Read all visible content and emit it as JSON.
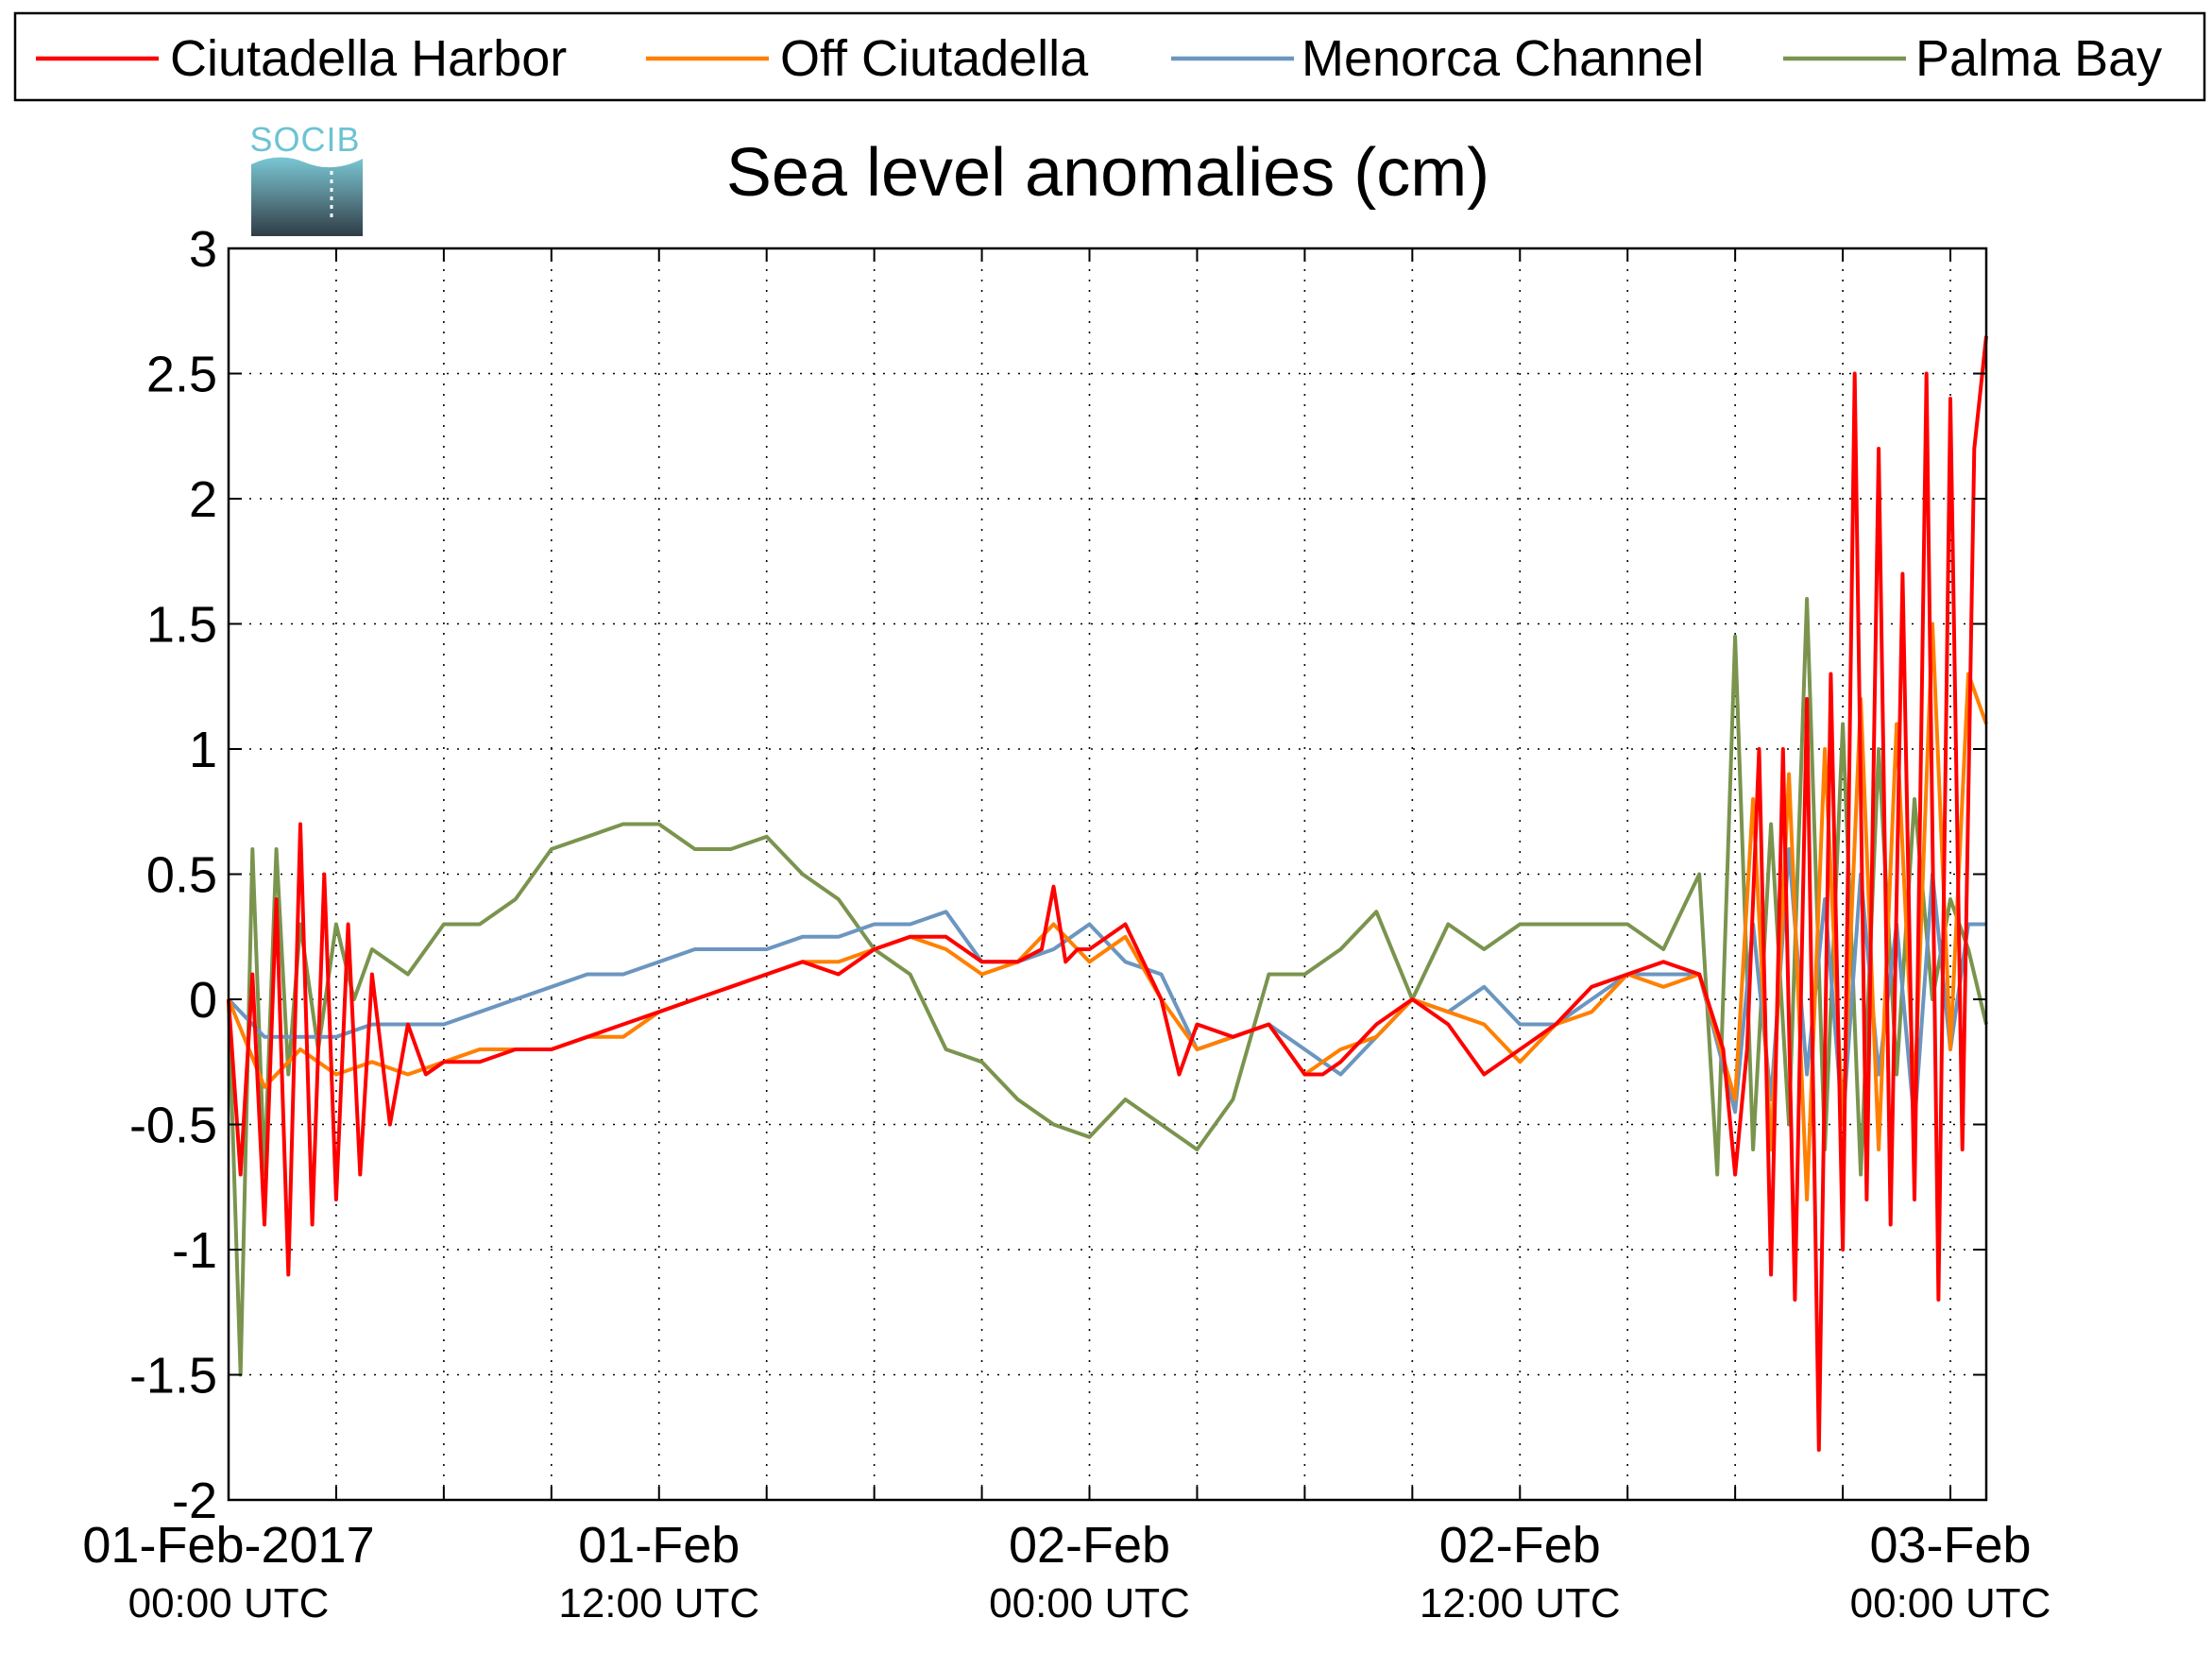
{
  "logo": {
    "text": "SOCIB"
  },
  "chart_data": {
    "type": "line",
    "title": "Sea level anomalies (cm)",
    "xlabel": "",
    "ylabel": "",
    "ylim": [
      -2,
      3
    ],
    "xlim": [
      "2017-02-01 00:00",
      "2017-02-03 01:00"
    ],
    "grid": true,
    "legend_position": "top",
    "y_ticks": [
      -2,
      -1.5,
      -1,
      -0.5,
      0,
      0.5,
      1,
      1.5,
      2,
      2.5,
      3
    ],
    "y_tick_labels": [
      "-2",
      "-1.5",
      "-1",
      "-0.5",
      "0",
      "0.5",
      "1",
      "1.5",
      "2",
      "2.5",
      "3"
    ],
    "x_ticks": [
      {
        "time": "2017-02-01 00:00",
        "line1": "01-Feb-2017",
        "line2": "00:00 UTC"
      },
      {
        "time": "2017-02-01 12:00",
        "line1": "01-Feb",
        "line2": "12:00 UTC"
      },
      {
        "time": "2017-02-02 00:00",
        "line1": "02-Feb",
        "line2": "00:00 UTC"
      },
      {
        "time": "2017-02-02 12:00",
        "line1": "02-Feb",
        "line2": "12:00 UTC"
      },
      {
        "time": "2017-02-03 00:00",
        "line1": "03-Feb",
        "line2": "00:00 UTC"
      }
    ],
    "x_minor_ticks": [
      "2017-02-01 00:00",
      "2017-02-01 03:00",
      "2017-02-01 06:00",
      "2017-02-01 09:00",
      "2017-02-01 12:00",
      "2017-02-01 15:00",
      "2017-02-01 18:00",
      "2017-02-01 21:00",
      "2017-02-02 00:00",
      "2017-02-02 03:00",
      "2017-02-02 06:00",
      "2017-02-02 09:00",
      "2017-02-02 12:00",
      "2017-02-02 15:00",
      "2017-02-02 18:00",
      "2017-02-02 21:00",
      "2017-02-03 00:00"
    ],
    "series": [
      {
        "name": "Ciutadella Harbor",
        "color": "#ff0000",
        "x": [
          "2017-02-01 00:00",
          "2017-02-01 00:20",
          "2017-02-01 00:40",
          "2017-02-01 01:00",
          "2017-02-01 01:20",
          "2017-02-01 01:40",
          "2017-02-01 02:00",
          "2017-02-01 02:20",
          "2017-02-01 02:40",
          "2017-02-01 03:00",
          "2017-02-01 03:20",
          "2017-02-01 03:40",
          "2017-02-01 04:00",
          "2017-02-01 04:30",
          "2017-02-01 05:00",
          "2017-02-01 05:30",
          "2017-02-01 06:00",
          "2017-02-01 07:00",
          "2017-02-01 08:00",
          "2017-02-01 09:00",
          "2017-02-01 10:00",
          "2017-02-01 11:00",
          "2017-02-01 12:00",
          "2017-02-01 13:00",
          "2017-02-01 14:00",
          "2017-02-01 15:00",
          "2017-02-01 16:00",
          "2017-02-01 17:00",
          "2017-02-01 18:00",
          "2017-02-01 19:00",
          "2017-02-01 20:00",
          "2017-02-01 21:00",
          "2017-02-01 22:00",
          "2017-02-01 22:40",
          "2017-02-01 23:00",
          "2017-02-01 23:20",
          "2017-02-01 23:40",
          "2017-02-02 00:00",
          "2017-02-02 01:00",
          "2017-02-02 02:00",
          "2017-02-02 02:30",
          "2017-02-02 03:00",
          "2017-02-02 04:00",
          "2017-02-02 05:00",
          "2017-02-02 06:00",
          "2017-02-02 06:30",
          "2017-02-02 07:00",
          "2017-02-02 08:00",
          "2017-02-02 09:00",
          "2017-02-02 10:00",
          "2017-02-02 11:00",
          "2017-02-02 12:00",
          "2017-02-02 13:00",
          "2017-02-02 14:00",
          "2017-02-02 15:00",
          "2017-02-02 16:00",
          "2017-02-02 17:00",
          "2017-02-02 17:40",
          "2017-02-02 18:00",
          "2017-02-02 18:20",
          "2017-02-02 18:40",
          "2017-02-02 19:00",
          "2017-02-02 19:20",
          "2017-02-02 19:40",
          "2017-02-02 20:00",
          "2017-02-02 20:20",
          "2017-02-02 20:40",
          "2017-02-02 21:00",
          "2017-02-02 21:20",
          "2017-02-02 21:40",
          "2017-02-02 22:00",
          "2017-02-02 22:20",
          "2017-02-02 22:40",
          "2017-02-02 23:00",
          "2017-02-02 23:20",
          "2017-02-02 23:40",
          "2017-02-03 00:00",
          "2017-02-03 00:20",
          "2017-02-03 00:40",
          "2017-02-03 01:00"
        ],
        "values": [
          0.0,
          -0.7,
          0.1,
          -0.9,
          0.4,
          -1.1,
          0.7,
          -0.9,
          0.5,
          -0.8,
          0.3,
          -0.7,
          0.1,
          -0.5,
          -0.1,
          -0.3,
          -0.25,
          -0.25,
          -0.2,
          -0.2,
          -0.15,
          -0.1,
          -0.05,
          0.0,
          0.05,
          0.1,
          0.15,
          0.1,
          0.2,
          0.25,
          0.25,
          0.15,
          0.15,
          0.2,
          0.45,
          0.15,
          0.2,
          0.2,
          0.3,
          0.0,
          -0.3,
          -0.1,
          -0.15,
          -0.1,
          -0.3,
          -0.3,
          -0.25,
          -0.1,
          0.0,
          -0.1,
          -0.3,
          -0.2,
          -0.1,
          0.05,
          0.1,
          0.15,
          0.1,
          -0.2,
          -0.7,
          -0.2,
          1.0,
          -1.1,
          1.0,
          -1.2,
          1.2,
          -1.8,
          1.3,
          -1.0,
          2.5,
          -0.8,
          2.2,
          -0.9,
          1.7,
          -0.8,
          2.5,
          -1.2,
          2.4,
          -0.6,
          2.2,
          2.65
        ]
      },
      {
        "name": "Off Ciutadella",
        "color": "#ff8000",
        "x": [
          "2017-02-01 00:00",
          "2017-02-01 01:00",
          "2017-02-01 02:00",
          "2017-02-01 03:00",
          "2017-02-01 04:00",
          "2017-02-01 05:00",
          "2017-02-01 06:00",
          "2017-02-01 07:00",
          "2017-02-01 08:00",
          "2017-02-01 09:00",
          "2017-02-01 10:00",
          "2017-02-01 11:00",
          "2017-02-01 12:00",
          "2017-02-01 13:00",
          "2017-02-01 14:00",
          "2017-02-01 15:00",
          "2017-02-01 16:00",
          "2017-02-01 17:00",
          "2017-02-01 18:00",
          "2017-02-01 19:00",
          "2017-02-01 20:00",
          "2017-02-01 21:00",
          "2017-02-01 22:00",
          "2017-02-01 23:00",
          "2017-02-02 00:00",
          "2017-02-02 01:00",
          "2017-02-02 02:00",
          "2017-02-02 03:00",
          "2017-02-02 04:00",
          "2017-02-02 05:00",
          "2017-02-02 06:00",
          "2017-02-02 07:00",
          "2017-02-02 08:00",
          "2017-02-02 09:00",
          "2017-02-02 10:00",
          "2017-02-02 11:00",
          "2017-02-02 12:00",
          "2017-02-02 13:00",
          "2017-02-02 14:00",
          "2017-02-02 15:00",
          "2017-02-02 16:00",
          "2017-02-02 17:00",
          "2017-02-02 18:00",
          "2017-02-02 18:30",
          "2017-02-02 19:00",
          "2017-02-02 19:30",
          "2017-02-02 20:00",
          "2017-02-02 20:30",
          "2017-02-02 21:00",
          "2017-02-02 21:30",
          "2017-02-02 22:00",
          "2017-02-02 22:30",
          "2017-02-02 23:00",
          "2017-02-02 23:30",
          "2017-02-03 00:00",
          "2017-02-03 00:30",
          "2017-02-03 01:00"
        ],
        "values": [
          0.0,
          -0.35,
          -0.2,
          -0.3,
          -0.25,
          -0.3,
          -0.25,
          -0.2,
          -0.2,
          -0.2,
          -0.15,
          -0.15,
          -0.05,
          0.0,
          0.05,
          0.1,
          0.15,
          0.15,
          0.2,
          0.25,
          0.2,
          0.1,
          0.15,
          0.3,
          0.15,
          0.25,
          0.0,
          -0.2,
          -0.15,
          -0.1,
          -0.3,
          -0.2,
          -0.15,
          0.0,
          -0.05,
          -0.1,
          -0.25,
          -0.1,
          -0.05,
          0.1,
          0.05,
          0.1,
          -0.4,
          0.8,
          -0.6,
          0.9,
          -0.8,
          1.0,
          -0.5,
          1.2,
          -0.6,
          1.1,
          -0.4,
          1.5,
          -0.2,
          1.3,
          1.1
        ]
      },
      {
        "name": "Menorca Channel",
        "color": "#6b96c0",
        "x": [
          "2017-02-01 00:00",
          "2017-02-01 01:00",
          "2017-02-01 02:00",
          "2017-02-01 03:00",
          "2017-02-01 04:00",
          "2017-02-01 05:00",
          "2017-02-01 06:00",
          "2017-02-01 07:00",
          "2017-02-01 08:00",
          "2017-02-01 09:00",
          "2017-02-01 10:00",
          "2017-02-01 11:00",
          "2017-02-01 12:00",
          "2017-02-01 13:00",
          "2017-02-01 14:00",
          "2017-02-01 15:00",
          "2017-02-01 16:00",
          "2017-02-01 17:00",
          "2017-02-01 18:00",
          "2017-02-01 19:00",
          "2017-02-01 20:00",
          "2017-02-01 21:00",
          "2017-02-01 22:00",
          "2017-02-01 23:00",
          "2017-02-02 00:00",
          "2017-02-02 01:00",
          "2017-02-02 02:00",
          "2017-02-02 03:00",
          "2017-02-02 04:00",
          "2017-02-02 05:00",
          "2017-02-02 06:00",
          "2017-02-02 07:00",
          "2017-02-02 08:00",
          "2017-02-02 09:00",
          "2017-02-02 10:00",
          "2017-02-02 11:00",
          "2017-02-02 12:00",
          "2017-02-02 13:00",
          "2017-02-02 14:00",
          "2017-02-02 15:00",
          "2017-02-02 16:00",
          "2017-02-02 17:00",
          "2017-02-02 18:00",
          "2017-02-02 18:30",
          "2017-02-02 19:00",
          "2017-02-02 19:30",
          "2017-02-02 20:00",
          "2017-02-02 20:30",
          "2017-02-02 21:00",
          "2017-02-02 21:30",
          "2017-02-02 22:00",
          "2017-02-02 22:30",
          "2017-02-02 23:00",
          "2017-02-02 23:30",
          "2017-02-03 00:00",
          "2017-02-03 00:30",
          "2017-02-03 01:00"
        ],
        "values": [
          0.0,
          -0.15,
          -0.15,
          -0.15,
          -0.1,
          -0.1,
          -0.1,
          -0.05,
          0.0,
          0.05,
          0.1,
          0.1,
          0.15,
          0.2,
          0.2,
          0.2,
          0.25,
          0.25,
          0.3,
          0.3,
          0.35,
          0.15,
          0.15,
          0.2,
          0.3,
          0.15,
          0.1,
          -0.2,
          -0.15,
          -0.1,
          -0.2,
          -0.3,
          -0.15,
          0.0,
          -0.05,
          0.05,
          -0.1,
          -0.1,
          0.0,
          0.1,
          0.1,
          0.1,
          -0.45,
          0.3,
          -0.4,
          0.6,
          -0.3,
          0.4,
          -0.5,
          0.5,
          -0.3,
          0.3,
          -0.5,
          0.5,
          -0.2,
          0.3,
          0.3
        ]
      },
      {
        "name": "Palma Bay",
        "color": "#7a944e",
        "x": [
          "2017-02-01 00:00",
          "2017-02-01 00:20",
          "2017-02-01 00:40",
          "2017-02-01 01:00",
          "2017-02-01 01:20",
          "2017-02-01 01:40",
          "2017-02-01 02:00",
          "2017-02-01 02:30",
          "2017-02-01 03:00",
          "2017-02-01 03:30",
          "2017-02-01 04:00",
          "2017-02-01 05:00",
          "2017-02-01 06:00",
          "2017-02-01 07:00",
          "2017-02-01 08:00",
          "2017-02-01 09:00",
          "2017-02-01 10:00",
          "2017-02-01 11:00",
          "2017-02-01 12:00",
          "2017-02-01 13:00",
          "2017-02-01 14:00",
          "2017-02-01 15:00",
          "2017-02-01 16:00",
          "2017-02-01 17:00",
          "2017-02-01 18:00",
          "2017-02-01 19:00",
          "2017-02-01 20:00",
          "2017-02-01 21:00",
          "2017-02-01 22:00",
          "2017-02-01 23:00",
          "2017-02-02 00:00",
          "2017-02-02 01:00",
          "2017-02-02 02:00",
          "2017-02-02 03:00",
          "2017-02-02 04:00",
          "2017-02-02 05:00",
          "2017-02-02 06:00",
          "2017-02-02 07:00",
          "2017-02-02 08:00",
          "2017-02-02 09:00",
          "2017-02-02 10:00",
          "2017-02-02 11:00",
          "2017-02-02 12:00",
          "2017-02-02 13:00",
          "2017-02-02 14:00",
          "2017-02-02 15:00",
          "2017-02-02 16:00",
          "2017-02-02 17:00",
          "2017-02-02 17:30",
          "2017-02-02 18:00",
          "2017-02-02 18:30",
          "2017-02-02 19:00",
          "2017-02-02 19:30",
          "2017-02-02 20:00",
          "2017-02-02 20:30",
          "2017-02-02 21:00",
          "2017-02-02 21:30",
          "2017-02-02 22:00",
          "2017-02-02 22:30",
          "2017-02-02 23:00",
          "2017-02-02 23:30",
          "2017-02-03 00:00",
          "2017-02-03 00:30",
          "2017-02-03 01:00"
        ],
        "values": [
          0.0,
          -1.5,
          0.6,
          -0.7,
          0.6,
          -0.3,
          0.3,
          -0.2,
          0.3,
          0.0,
          0.2,
          0.1,
          0.3,
          0.3,
          0.4,
          0.6,
          0.65,
          0.7,
          0.7,
          0.6,
          0.6,
          0.65,
          0.5,
          0.4,
          0.2,
          0.1,
          -0.2,
          -0.25,
          -0.4,
          -0.5,
          -0.55,
          -0.4,
          -0.5,
          -0.6,
          -0.4,
          0.1,
          0.1,
          0.2,
          0.35,
          0.0,
          0.3,
          0.2,
          0.3,
          0.3,
          0.3,
          0.3,
          0.2,
          0.5,
          -0.7,
          1.45,
          -0.6,
          0.7,
          -0.5,
          1.6,
          -0.6,
          1.1,
          -0.7,
          1.0,
          -0.3,
          0.8,
          0.0,
          0.4,
          0.2,
          -0.1
        ]
      }
    ]
  }
}
